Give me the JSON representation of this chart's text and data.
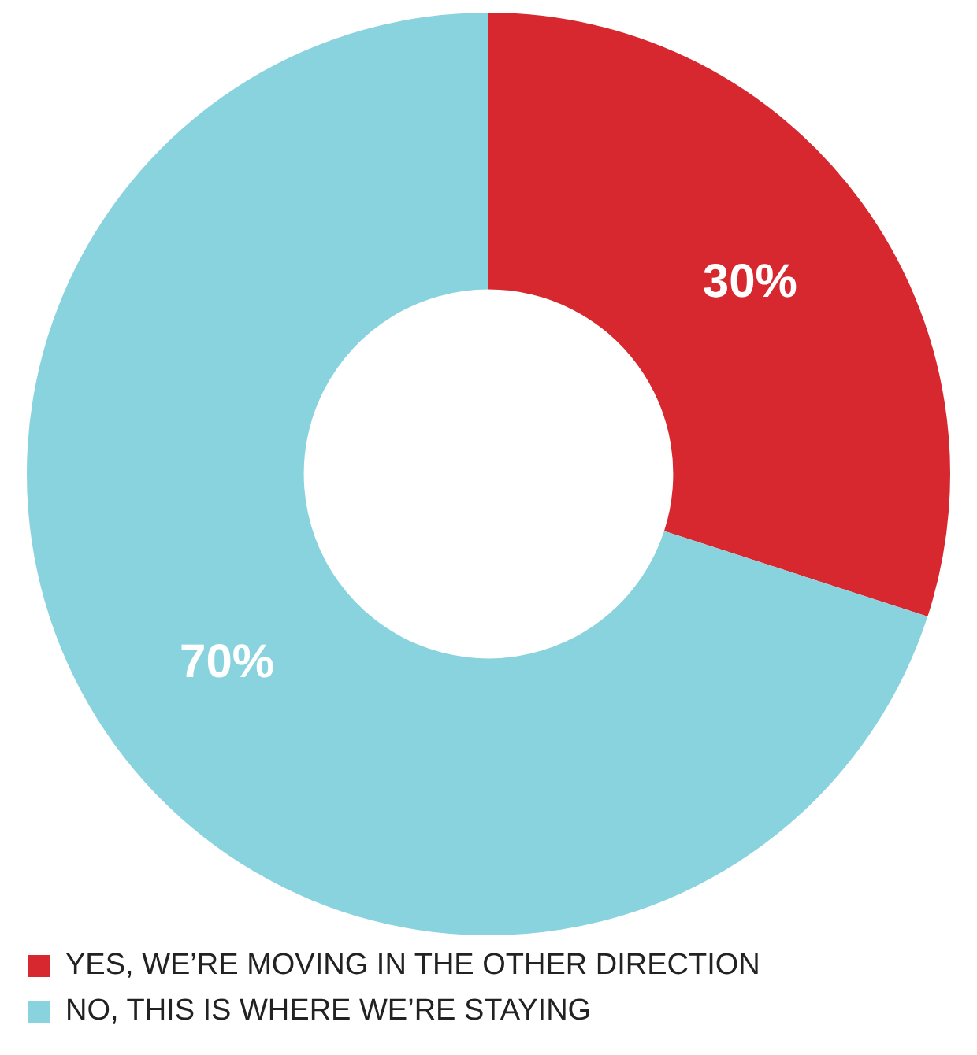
{
  "chart_data": {
    "type": "donut",
    "categories": [
      "YES, WE’RE MOVING IN THE OTHER DIRECTION",
      "NO, THIS IS WHERE WE’RE STAYING"
    ],
    "values": [
      30,
      70
    ],
    "colors": [
      "#d7282f",
      "#89d3df"
    ],
    "value_labels": [
      "30%",
      "70%"
    ],
    "legend": "bottom"
  }
}
